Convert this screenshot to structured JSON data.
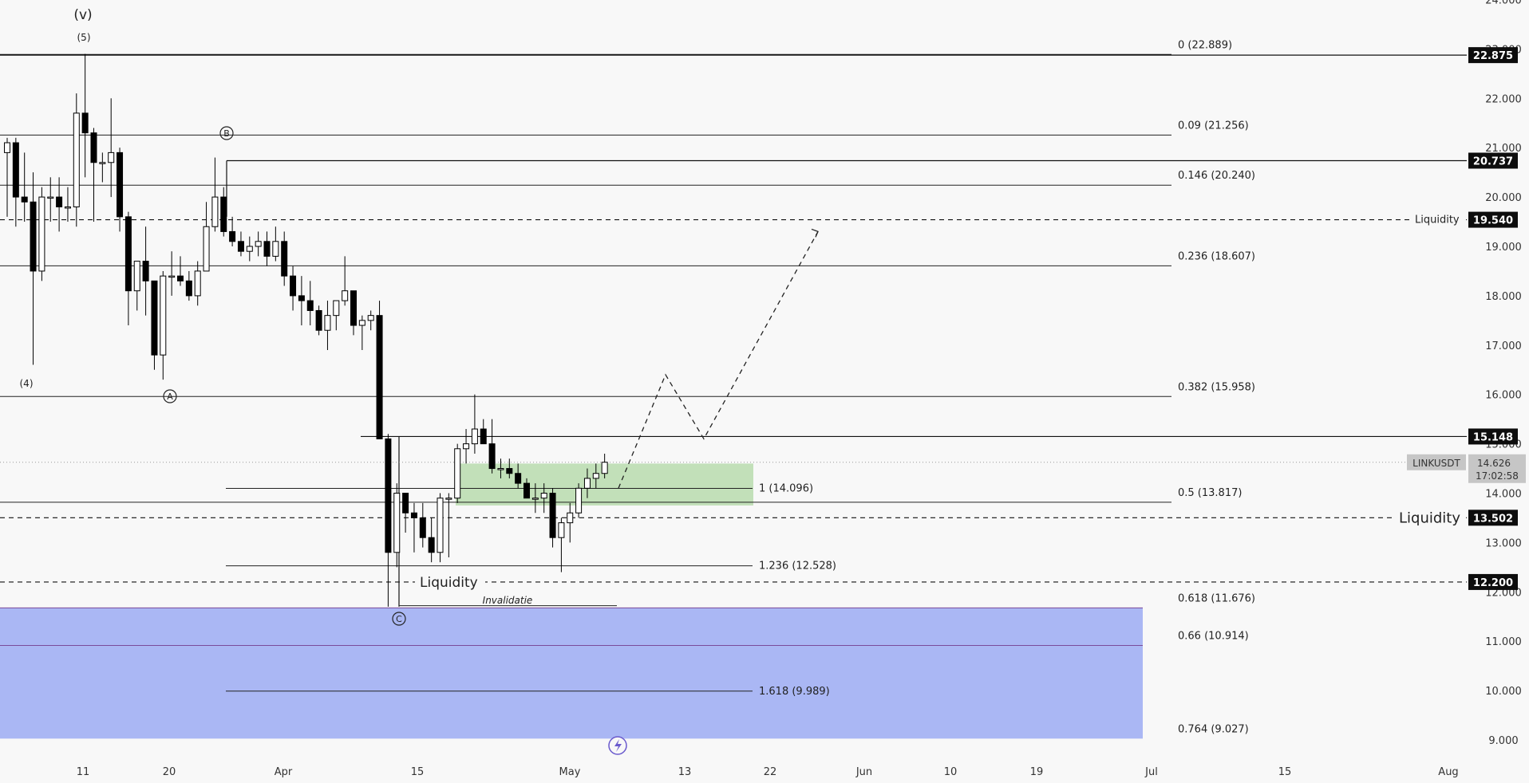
{
  "chart_data": {
    "type": "candlestick",
    "symbol": "LINKUSDT",
    "last_price": "14.626",
    "countdown": "17:02:58",
    "y_axis": {
      "range": [
        8.7,
        24.4
      ],
      "ticks": [
        "24.000",
        "23.000",
        "22.000",
        "21.000",
        "20.000",
        "19.000",
        "18.000",
        "17.000",
        "16.000",
        "15.000",
        "14.000",
        "13.000",
        "12.000",
        "11.000",
        "10.000",
        "9.000"
      ],
      "scale": "linear"
    },
    "x_axis": {
      "ticks": [
        "11",
        "20",
        "Apr",
        "15",
        "May",
        "13",
        "22",
        "Jun",
        "10",
        "19",
        "Jul",
        "15",
        "Aug"
      ]
    },
    "candles": [
      {
        "o": 20.9,
        "h": 21.2,
        "l": 19.6,
        "c": 21.1
      },
      {
        "o": 21.1,
        "h": 21.2,
        "l": 19.4,
        "c": 20.0
      },
      {
        "o": 20.0,
        "h": 20.9,
        "l": 19.5,
        "c": 19.9
      },
      {
        "o": 19.9,
        "h": 20.5,
        "l": 16.6,
        "c": 18.5
      },
      {
        "o": 18.5,
        "h": 20.2,
        "l": 18.3,
        "c": 20.0
      },
      {
        "o": 20.0,
        "h": 20.4,
        "l": 19.5,
        "c": 20.0
      },
      {
        "o": 20.0,
        "h": 20.4,
        "l": 19.3,
        "c": 19.8
      },
      {
        "o": 19.8,
        "h": 20.2,
        "l": 19.5,
        "c": 19.8
      },
      {
        "o": 19.8,
        "h": 22.1,
        "l": 19.4,
        "c": 21.7
      },
      {
        "o": 21.7,
        "h": 22.9,
        "l": 20.4,
        "c": 21.3
      },
      {
        "o": 21.3,
        "h": 21.4,
        "l": 19.5,
        "c": 20.7
      },
      {
        "o": 20.7,
        "h": 20.9,
        "l": 20.3,
        "c": 20.7
      },
      {
        "o": 20.7,
        "h": 22.0,
        "l": 20.0,
        "c": 20.9
      },
      {
        "o": 20.9,
        "h": 21.0,
        "l": 19.3,
        "c": 19.6
      },
      {
        "o": 19.6,
        "h": 19.7,
        "l": 17.4,
        "c": 18.1
      },
      {
        "o": 18.1,
        "h": 18.7,
        "l": 17.7,
        "c": 18.7
      },
      {
        "o": 18.7,
        "h": 19.4,
        "l": 17.6,
        "c": 18.3
      },
      {
        "o": 18.3,
        "h": 18.3,
        "l": 16.5,
        "c": 16.8
      },
      {
        "o": 16.8,
        "h": 18.5,
        "l": 16.3,
        "c": 18.4
      },
      {
        "o": 18.4,
        "h": 18.9,
        "l": 18.0,
        "c": 18.4
      },
      {
        "o": 18.4,
        "h": 18.8,
        "l": 18.2,
        "c": 18.3
      },
      {
        "o": 18.3,
        "h": 18.5,
        "l": 17.9,
        "c": 18.0
      },
      {
        "o": 18.0,
        "h": 18.7,
        "l": 17.8,
        "c": 18.5
      },
      {
        "o": 18.5,
        "h": 19.9,
        "l": 18.5,
        "c": 19.4
      },
      {
        "o": 19.4,
        "h": 20.8,
        "l": 19.3,
        "c": 20.0
      },
      {
        "o": 20.0,
        "h": 20.2,
        "l": 19.2,
        "c": 19.3
      },
      {
        "o": 19.3,
        "h": 19.6,
        "l": 19.0,
        "c": 19.1
      },
      {
        "o": 19.1,
        "h": 19.3,
        "l": 18.8,
        "c": 18.9
      },
      {
        "o": 18.9,
        "h": 19.2,
        "l": 18.7,
        "c": 19.0
      },
      {
        "o": 19.0,
        "h": 19.3,
        "l": 18.8,
        "c": 19.1
      },
      {
        "o": 19.1,
        "h": 19.3,
        "l": 18.6,
        "c": 18.8
      },
      {
        "o": 18.8,
        "h": 19.4,
        "l": 18.7,
        "c": 19.1
      },
      {
        "o": 19.1,
        "h": 19.3,
        "l": 18.2,
        "c": 18.4
      },
      {
        "o": 18.4,
        "h": 18.6,
        "l": 17.7,
        "c": 18.0
      },
      {
        "o": 18.0,
        "h": 18.4,
        "l": 17.4,
        "c": 17.9
      },
      {
        "o": 17.9,
        "h": 18.3,
        "l": 17.4,
        "c": 17.7
      },
      {
        "o": 17.7,
        "h": 17.8,
        "l": 17.2,
        "c": 17.3
      },
      {
        "o": 17.3,
        "h": 17.9,
        "l": 16.9,
        "c": 17.6
      },
      {
        "o": 17.6,
        "h": 17.9,
        "l": 17.3,
        "c": 17.9
      },
      {
        "o": 17.9,
        "h": 18.8,
        "l": 17.8,
        "c": 18.1
      },
      {
        "o": 18.1,
        "h": 18.1,
        "l": 17.2,
        "c": 17.4
      },
      {
        "o": 17.4,
        "h": 17.6,
        "l": 16.9,
        "c": 17.5
      },
      {
        "o": 17.5,
        "h": 17.7,
        "l": 17.3,
        "c": 17.6
      },
      {
        "o": 17.6,
        "h": 17.9,
        "l": 15.1,
        "c": 15.1
      },
      {
        "o": 15.1,
        "h": 15.2,
        "l": 11.7,
        "c": 12.8
      },
      {
        "o": 12.8,
        "h": 14.2,
        "l": 12.5,
        "c": 14.0
      },
      {
        "o": 14.0,
        "h": 14.0,
        "l": 13.2,
        "c": 13.6
      },
      {
        "o": 13.6,
        "h": 13.8,
        "l": 12.8,
        "c": 13.5
      },
      {
        "o": 13.5,
        "h": 13.8,
        "l": 12.9,
        "c": 13.1
      },
      {
        "o": 13.1,
        "h": 13.5,
        "l": 12.6,
        "c": 12.8
      },
      {
        "o": 12.8,
        "h": 14.0,
        "l": 12.6,
        "c": 13.9
      },
      {
        "o": 13.9,
        "h": 14.0,
        "l": 12.7,
        "c": 13.9
      },
      {
        "o": 13.9,
        "h": 15.0,
        "l": 13.8,
        "c": 14.9
      },
      {
        "o": 14.9,
        "h": 15.3,
        "l": 14.6,
        "c": 15.0
      },
      {
        "o": 15.0,
        "h": 16.0,
        "l": 14.8,
        "c": 15.3
      },
      {
        "o": 15.3,
        "h": 15.5,
        "l": 15.0,
        "c": 15.0
      },
      {
        "o": 15.0,
        "h": 15.5,
        "l": 14.4,
        "c": 14.5
      },
      {
        "o": 14.5,
        "h": 14.7,
        "l": 14.3,
        "c": 14.5
      },
      {
        "o": 14.5,
        "h": 14.7,
        "l": 14.3,
        "c": 14.4
      },
      {
        "o": 14.4,
        "h": 14.6,
        "l": 14.1,
        "c": 14.2
      },
      {
        "o": 14.2,
        "h": 14.3,
        "l": 13.9,
        "c": 13.9
      },
      {
        "o": 13.9,
        "h": 14.2,
        "l": 13.6,
        "c": 13.9
      },
      {
        "o": 13.9,
        "h": 14.2,
        "l": 13.6,
        "c": 14.0
      },
      {
        "o": 14.0,
        "h": 14.1,
        "l": 12.9,
        "c": 13.1
      },
      {
        "o": 13.1,
        "h": 13.5,
        "l": 12.4,
        "c": 13.4
      },
      {
        "o": 13.4,
        "h": 13.8,
        "l": 13.0,
        "c": 13.6
      },
      {
        "o": 13.6,
        "h": 14.2,
        "l": 13.5,
        "c": 14.1
      },
      {
        "o": 14.1,
        "h": 14.5,
        "l": 13.9,
        "c": 14.3
      },
      {
        "o": 14.3,
        "h": 14.6,
        "l": 14.1,
        "c": 14.4
      },
      {
        "o": 14.4,
        "h": 14.8,
        "l": 14.3,
        "c": 14.626
      }
    ],
    "price_badges": [
      {
        "value": "22.875",
        "price": 22.875
      },
      {
        "value": "20.737",
        "price": 20.737
      },
      {
        "value": "19.540",
        "price": 19.54
      },
      {
        "value": "15.148",
        "price": 15.148
      },
      {
        "value": "13.502",
        "price": 13.502
      },
      {
        "value": "12.200",
        "price": 12.2
      }
    ],
    "fib_retracement": [
      {
        "label": "0 (22.889)",
        "price": 22.889
      },
      {
        "label": "0.09 (21.256)",
        "price": 21.256
      },
      {
        "label": "0.146 (20.240)",
        "price": 20.24
      },
      {
        "label": "0.236 (18.607)",
        "price": 18.607
      },
      {
        "label": "0.382 (15.958)",
        "price": 15.958
      },
      {
        "label": "0.5 (13.817)",
        "price": 13.817
      },
      {
        "label": "0.618 (11.676)",
        "price": 11.676
      },
      {
        "label": "0.66 (10.914)",
        "price": 10.914
      },
      {
        "label": "0.764 (9.027)",
        "price": 9.027
      }
    ],
    "fib_extension": [
      {
        "label": "1 (14.096)",
        "price": 14.096
      },
      {
        "label": "1.236 (12.528)",
        "price": 12.528
      },
      {
        "label": "1.618 (9.989)",
        "price": 9.989
      }
    ],
    "liquidity_labels": [
      {
        "text": "Liquidity",
        "price": 19.54
      },
      {
        "text": "Liquidity",
        "price": 13.502
      },
      {
        "text": "Liquidity",
        "price": 12.2
      }
    ],
    "annotations": {
      "wave_v": "(v)",
      "wave_5": "(5)",
      "wave_4": "(4)",
      "wave_a": "A",
      "wave_b": "B",
      "wave_c": "C",
      "invalidation": "Invalidatie"
    },
    "projected_path": [
      14.1,
      16.4,
      15.1,
      19.3
    ],
    "zones": {
      "green_range": [
        13.75,
        14.6
      ],
      "blue_range": [
        9.027,
        11.676
      ]
    },
    "colors": {
      "background": "#f8f8f8",
      "bullish_fill": "#ffffff",
      "bearish_fill": "#000000",
      "green_zone": "#b8dcae",
      "blue_zone": "#aab7f4",
      "badge_bg": "#0d0d0d",
      "last_price_bg": "#c6c6c6"
    }
  }
}
